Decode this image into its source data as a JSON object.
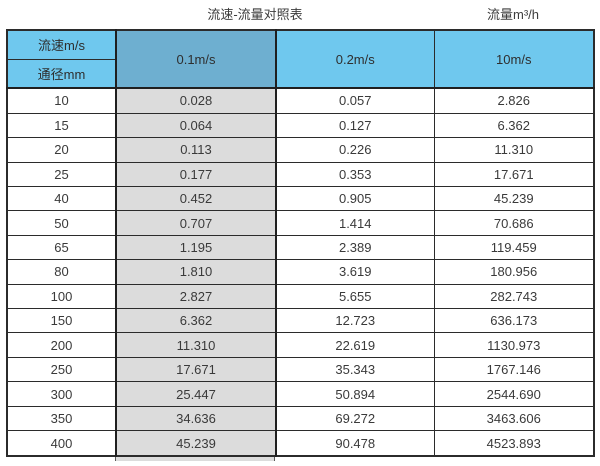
{
  "titles": {
    "main": "流速-流量对照表",
    "unit": "流量m³/h"
  },
  "table": {
    "corner": {
      "velocity_label": "流速m/s",
      "diameter_label": "通径mm"
    },
    "velocity_columns": [
      "0.1m/s",
      "0.2m/s",
      "10m/s"
    ],
    "rows": [
      {
        "dn": "10",
        "v": [
          "0.028",
          "0.057",
          "2.826"
        ]
      },
      {
        "dn": "15",
        "v": [
          "0.064",
          "0.127",
          "6.362"
        ]
      },
      {
        "dn": "20",
        "v": [
          "0.113",
          "0.226",
          "11.310"
        ]
      },
      {
        "dn": "25",
        "v": [
          "0.177",
          "0.353",
          "17.671"
        ]
      },
      {
        "dn": "40",
        "v": [
          "0.452",
          "0.905",
          "45.239"
        ]
      },
      {
        "dn": "50",
        "v": [
          "0.707",
          "1.414",
          "70.686"
        ]
      },
      {
        "dn": "65",
        "v": [
          "1.195",
          "2.389",
          "119.459"
        ]
      },
      {
        "dn": "80",
        "v": [
          "1.810",
          "3.619",
          "180.956"
        ]
      },
      {
        "dn": "100",
        "v": [
          "2.827",
          "5.655",
          "282.743"
        ]
      },
      {
        "dn": "150",
        "v": [
          "6.362",
          "12.723",
          "636.173"
        ]
      },
      {
        "dn": "200",
        "v": [
          "11.310",
          "22.619",
          "1130.973"
        ]
      },
      {
        "dn": "250",
        "v": [
          "17.671",
          "35.343",
          "1767.146"
        ]
      },
      {
        "dn": "300",
        "v": [
          "25.447",
          "50.894",
          "2544.690"
        ]
      },
      {
        "dn": "350",
        "v": [
          "34.636",
          "69.272",
          "3463.606"
        ]
      },
      {
        "dn": "400",
        "v": [
          "45.239",
          "90.478",
          "4523.893"
        ]
      }
    ]
  },
  "colors": {
    "header_cyan": "#6fc8ee",
    "header_steel_blue": "#6eafd0",
    "highlight_column_gray": "#dcdcdc",
    "border_dark": "#2b2b2b",
    "text": "#3a3a3a"
  },
  "chart_data": {
    "type": "table",
    "title": "流速-流量对照表",
    "unit_label": "流量m³/h",
    "columns": [
      "通径mm",
      "0.1m/s",
      "0.2m/s",
      "10m/s"
    ],
    "rows": [
      [
        10,
        0.028,
        0.057,
        2.826
      ],
      [
        15,
        0.064,
        0.127,
        6.362
      ],
      [
        20,
        0.113,
        0.226,
        11.31
      ],
      [
        25,
        0.177,
        0.353,
        17.671
      ],
      [
        40,
        0.452,
        0.905,
        45.239
      ],
      [
        50,
        0.707,
        1.414,
        70.686
      ],
      [
        65,
        1.195,
        2.389,
        119.459
      ],
      [
        80,
        1.81,
        3.619,
        180.956
      ],
      [
        100,
        2.827,
        5.655,
        282.743
      ],
      [
        150,
        6.362,
        12.723,
        636.173
      ],
      [
        200,
        11.31,
        22.619,
        1130.973
      ],
      [
        250,
        17.671,
        35.343,
        1767.146
      ],
      [
        300,
        25.447,
        50.894,
        2544.69
      ],
      [
        350,
        34.636,
        69.272,
        3463.606
      ],
      [
        400,
        45.239,
        90.478,
        4523.893
      ]
    ]
  }
}
